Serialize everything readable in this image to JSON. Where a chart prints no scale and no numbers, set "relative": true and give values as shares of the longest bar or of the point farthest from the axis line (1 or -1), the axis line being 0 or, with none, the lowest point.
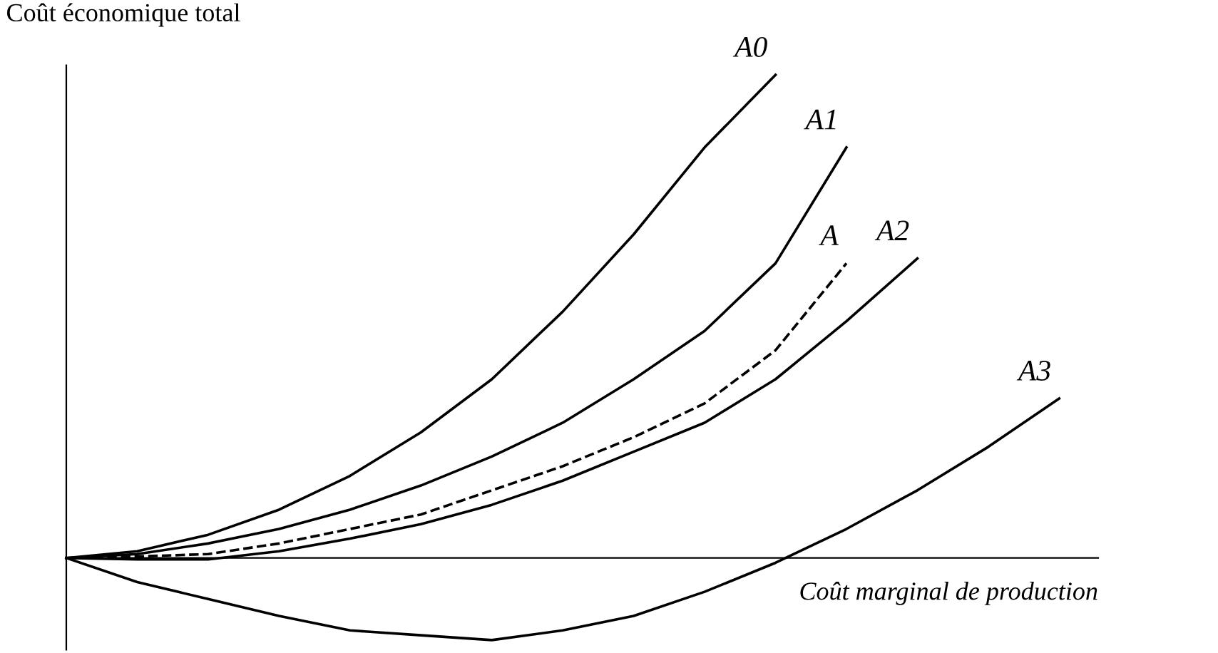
{
  "chart_data": {
    "type": "line",
    "relative": true,
    "xlabel": "Coût marginal de production",
    "ylabel": "Coût économique total",
    "categories": [
      null,
      null,
      null,
      null,
      null,
      null,
      null,
      null,
      null,
      null,
      null,
      null,
      null,
      null,
      null
    ],
    "marker": "none",
    "series": [
      {
        "name": "A0",
        "color": "#000000",
        "line_style": "solid",
        "values": [
          0,
          0.014,
          0.048,
          0.1,
          0.17,
          0.26,
          0.37,
          0.51,
          0.67,
          0.85,
          1.0,
          null,
          null,
          null,
          null
        ]
      },
      {
        "name": "A1",
        "color": "#000000",
        "line_style": "solid",
        "values": [
          0,
          0.008,
          0.03,
          0.06,
          0.1,
          0.15,
          0.21,
          0.28,
          0.37,
          0.47,
          0.61,
          0.85,
          null,
          null,
          null
        ]
      },
      {
        "name": "A",
        "color": "#000000",
        "line_style": "dashed",
        "values": [
          0,
          0.003,
          0.008,
          0.03,
          0.06,
          0.09,
          0.14,
          0.19,
          0.25,
          0.32,
          0.43,
          0.61,
          null,
          null,
          null
        ]
      },
      {
        "name": "A2",
        "color": "#000000",
        "line_style": "solid",
        "values": [
          0,
          -0.003,
          -0.003,
          0.014,
          0.04,
          0.07,
          0.11,
          0.16,
          0.22,
          0.28,
          0.37,
          0.49,
          0.62,
          null,
          null
        ]
      },
      {
        "name": "A3",
        "color": "#000000",
        "line_style": "solid",
        "values": [
          0,
          -0.05,
          -0.085,
          -0.12,
          -0.15,
          -0.16,
          -0.17,
          -0.15,
          -0.12,
          -0.07,
          -0.01,
          0.06,
          0.14,
          0.23,
          0.33
        ]
      }
    ]
  }
}
